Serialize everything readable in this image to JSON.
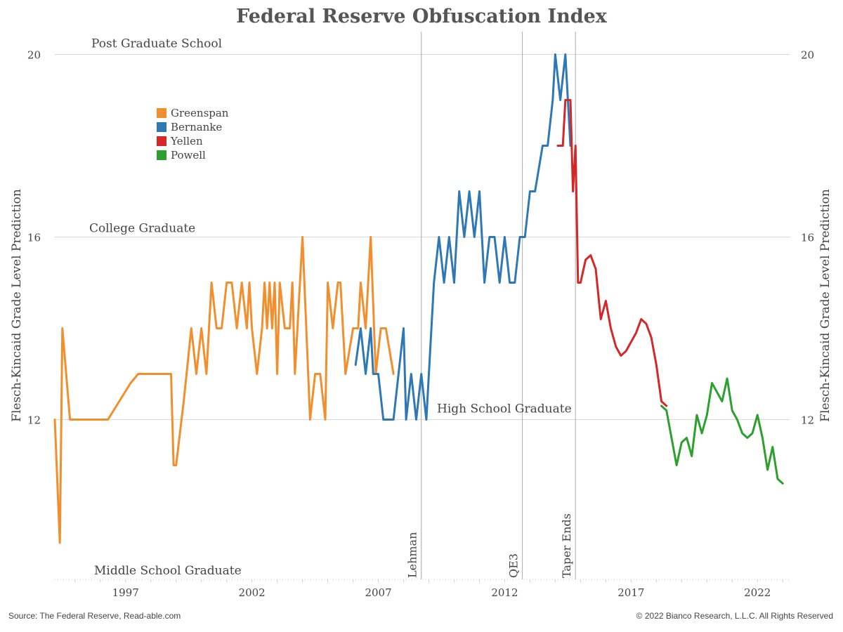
{
  "chart_data": {
    "type": "line",
    "title": "Federal Reserve Obfuscation Index",
    "ylabel_left": "Flesch-Kincaid Grade Level Prediction",
    "ylabel_right": "Flesch-Kincaid Grade Level Prediction",
    "xlabel": "",
    "x_ticks": [
      1997,
      2002,
      2007,
      2012,
      2017,
      2022
    ],
    "y_ticks": [
      12,
      16,
      20
    ],
    "xlim": [
      1994.2,
      2023.3
    ],
    "ylim": [
      8.5,
      20.5
    ],
    "grid": "horizontal",
    "legend_position": "top-left",
    "reference_labels": [
      {
        "text": "Post Graduate School",
        "y": 20.25
      },
      {
        "text": "College Graduate",
        "y": 16.2
      },
      {
        "text": "High School Graduate",
        "y": 12.25
      },
      {
        "text": "Middle School Graduate",
        "y": 8.7
      }
    ],
    "events": [
      {
        "label": "Lehman",
        "x": 2008.7
      },
      {
        "label": "QE3",
        "x": 2012.7
      },
      {
        "label": "Taper Ends",
        "x": 2014.8
      }
    ],
    "series": [
      {
        "name": "Greenspan",
        "color": "#f28e2b",
        "x": [
          1994.2,
          1994.4,
          1994.5,
          1994.8,
          1995.0,
          1996.0,
          1996.3,
          1997.2,
          1997.5,
          1998.0,
          1998.5,
          1998.8,
          1998.9,
          1999.0,
          1999.3,
          1999.6,
          1999.8,
          2000.0,
          2000.2,
          2000.4,
          2000.6,
          2000.8,
          2001.0,
          2001.2,
          2001.4,
          2001.6,
          2001.8,
          2001.9,
          2002.0,
          2002.2,
          2002.4,
          2002.5,
          2002.6,
          2002.7,
          2002.8,
          2002.9,
          2003.0,
          2003.1,
          2003.3,
          2003.5,
          2003.6,
          2003.7,
          2003.9,
          2004.0,
          2004.3,
          2004.5,
          2004.7,
          2004.9,
          2005.0,
          2005.2,
          2005.4,
          2005.5,
          2005.7,
          2006.0,
          2006.2,
          2006.3,
          2006.5,
          2006.7,
          2006.9,
          2007.1,
          2007.3,
          2007.6
        ],
        "y": [
          12.0,
          9.3,
          14.0,
          12.0,
          12.0,
          12.0,
          12.0,
          12.8,
          13.0,
          13.0,
          13.0,
          13.0,
          11.0,
          11.0,
          12.4,
          14.0,
          13.0,
          14.0,
          13.0,
          15.0,
          14.0,
          14.0,
          15.0,
          15.0,
          14.0,
          15.0,
          14.0,
          15.0,
          14.0,
          13.0,
          14.0,
          15.0,
          14.0,
          15.0,
          14.0,
          15.0,
          13.0,
          15.0,
          14.0,
          14.0,
          15.0,
          13.0,
          15.0,
          16.0,
          12.0,
          13.0,
          13.0,
          12.0,
          15.0,
          14.0,
          15.0,
          15.0,
          13.0,
          14.0,
          14.0,
          15.0,
          14.0,
          16.0,
          13.0,
          14.0,
          14.0,
          13.0
        ]
      },
      {
        "name": "Bernanke",
        "color": "#2e78b5",
        "x": [
          2006.1,
          2006.3,
          2006.5,
          2006.7,
          2006.8,
          2007.0,
          2007.2,
          2007.4,
          2007.6,
          2008.0,
          2008.1,
          2008.3,
          2008.5,
          2008.7,
          2008.9,
          2009.2,
          2009.4,
          2009.6,
          2009.8,
          2010.0,
          2010.2,
          2010.4,
          2010.6,
          2010.8,
          2011.0,
          2011.2,
          2011.4,
          2011.6,
          2011.8,
          2012.0,
          2012.2,
          2012.4,
          2012.6,
          2012.8,
          2013.0,
          2013.2,
          2013.5,
          2013.7,
          2013.9,
          2014.0,
          2014.2,
          2014.4,
          2014.6
        ],
        "y": [
          13.2,
          14.0,
          13.0,
          14.0,
          13.0,
          13.0,
          12.0,
          12.0,
          12.0,
          14.0,
          12.0,
          13.0,
          12.0,
          13.0,
          12.0,
          15.0,
          16.0,
          15.0,
          16.0,
          15.0,
          17.0,
          16.0,
          17.0,
          16.0,
          17.0,
          15.0,
          16.0,
          16.0,
          15.0,
          16.0,
          15.0,
          15.0,
          16.0,
          16.0,
          17.0,
          17.0,
          18.0,
          18.0,
          19.0,
          20.0,
          19.0,
          20.0,
          18.0
        ]
      },
      {
        "name": "Yellen",
        "color": "#d62728",
        "x": [
          2014.1,
          2014.3,
          2014.4,
          2014.6,
          2014.7,
          2014.8,
          2014.9,
          2015.0,
          2015.2,
          2015.4,
          2015.6,
          2015.8,
          2016.0,
          2016.2,
          2016.4,
          2016.6,
          2016.8,
          2017.0,
          2017.2,
          2017.4,
          2017.6,
          2017.8,
          2018.0,
          2018.2,
          2018.4
        ],
        "y": [
          18.0,
          18.0,
          19.0,
          19.0,
          17.0,
          18.0,
          15.0,
          15.0,
          15.5,
          15.6,
          15.3,
          14.2,
          14.6,
          14.0,
          13.6,
          13.4,
          13.5,
          13.7,
          13.9,
          14.2,
          14.1,
          13.8,
          13.2,
          12.4,
          12.3
        ]
      },
      {
        "name": "Powell",
        "color": "#2ca02c",
        "x": [
          2018.2,
          2018.4,
          2018.6,
          2018.8,
          2019.0,
          2019.2,
          2019.4,
          2019.6,
          2019.8,
          2020.0,
          2020.2,
          2020.4,
          2020.6,
          2020.8,
          2021.0,
          2021.2,
          2021.4,
          2021.6,
          2021.8,
          2022.0,
          2022.2,
          2022.4,
          2022.6,
          2022.8,
          2023.0
        ],
        "y": [
          12.3,
          12.2,
          11.6,
          11.0,
          11.5,
          11.6,
          11.2,
          12.1,
          11.7,
          12.1,
          12.8,
          12.6,
          12.4,
          12.9,
          12.2,
          12.0,
          11.7,
          11.6,
          11.7,
          12.1,
          11.6,
          10.9,
          11.4,
          10.7,
          10.6
        ]
      }
    ]
  },
  "footer": {
    "source": "Source: The Federal Reserve, Read-able.com",
    "copyright": "© 2022 Bianco Research, L.L.C. All Rights Reserved"
  }
}
